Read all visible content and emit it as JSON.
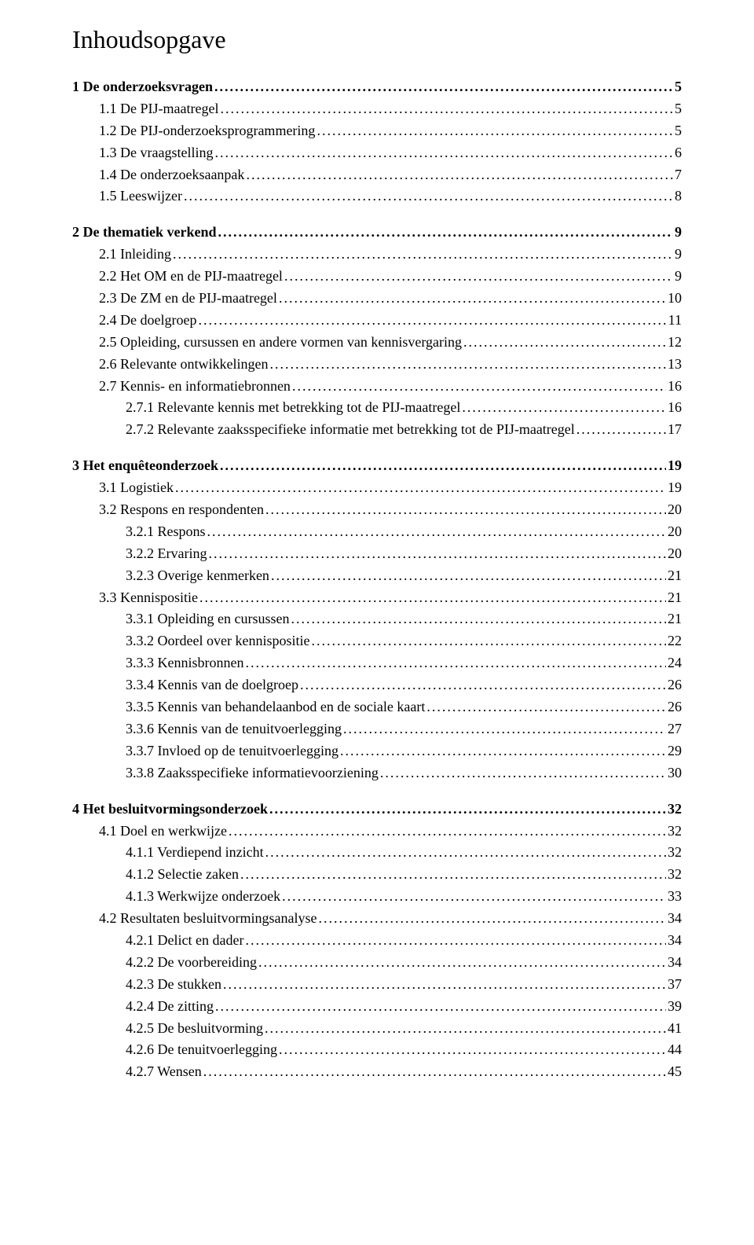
{
  "title": "Inhoudsopgave",
  "text_color": "#000000",
  "background_color": "#ffffff",
  "title_fontsize": 32,
  "body_fontsize": 18,
  "toc": [
    {
      "level": 0,
      "bold": true,
      "label": "1    De onderzoeksvragen",
      "page": "5"
    },
    {
      "level": 1,
      "bold": false,
      "label": "1.1    De PIJ-maatregel",
      "page": "5"
    },
    {
      "level": 1,
      "bold": false,
      "label": "1.2    De PIJ-onderzoeksprogrammering",
      "page": "5"
    },
    {
      "level": 1,
      "bold": false,
      "label": "1.3    De vraagstelling",
      "page": "6"
    },
    {
      "level": 1,
      "bold": false,
      "label": "1.4    De onderzoeksaanpak",
      "page": "7"
    },
    {
      "level": 1,
      "bold": false,
      "label": "1.5    Leeswijzer",
      "page": "8"
    },
    {
      "spacer": true
    },
    {
      "level": 0,
      "bold": true,
      "label": "2    De thematiek verkend",
      "page": "9"
    },
    {
      "level": 1,
      "bold": false,
      "label": "2.1    Inleiding",
      "page": "9"
    },
    {
      "level": 1,
      "bold": false,
      "label": "2.2    Het OM en de PIJ-maatregel",
      "page": "9"
    },
    {
      "level": 1,
      "bold": false,
      "label": "2.3    De ZM en de PIJ-maatregel",
      "page": "10"
    },
    {
      "level": 1,
      "bold": false,
      "label": "2.4    De doelgroep",
      "page": "11"
    },
    {
      "level": 1,
      "bold": false,
      "label": "2.5    Opleiding, cursussen en andere vormen van kennisvergaring",
      "page": "12"
    },
    {
      "level": 1,
      "bold": false,
      "label": "2.6    Relevante ontwikkelingen",
      "page": "13"
    },
    {
      "level": 1,
      "bold": false,
      "label": "2.7    Kennis- en informatiebronnen",
      "page": "16"
    },
    {
      "level": 2,
      "bold": false,
      "label": "2.7.1    Relevante kennis met betrekking tot de PIJ-maatregel",
      "page": "16"
    },
    {
      "level": 2,
      "bold": false,
      "label": "2.7.2    Relevante zaaksspecifieke informatie met betrekking tot de PIJ-maatregel",
      "page": "17"
    },
    {
      "spacer": true
    },
    {
      "level": 0,
      "bold": true,
      "label": "3    Het enquêteonderzoek",
      "page": "19"
    },
    {
      "level": 1,
      "bold": false,
      "label": "3.1    Logistiek",
      "page": "19"
    },
    {
      "level": 1,
      "bold": false,
      "label": "3.2    Respons en respondenten",
      "page": "20"
    },
    {
      "level": 2,
      "bold": false,
      "label": "3.2.1    Respons",
      "page": "20"
    },
    {
      "level": 2,
      "bold": false,
      "label": "3.2.2    Ervaring",
      "page": "20"
    },
    {
      "level": 2,
      "bold": false,
      "label": "3.2.3    Overige kenmerken",
      "page": "21"
    },
    {
      "level": 1,
      "bold": false,
      "label": "3.3    Kennispositie",
      "page": "21"
    },
    {
      "level": 2,
      "bold": false,
      "label": "3.3.1    Opleiding en cursussen",
      "page": "21"
    },
    {
      "level": 2,
      "bold": false,
      "label": "3.3.2    Oordeel over kennispositie",
      "page": "22"
    },
    {
      "level": 2,
      "bold": false,
      "label": "3.3.3    Kennisbronnen",
      "page": "24"
    },
    {
      "level": 2,
      "bold": false,
      "label": "3.3.4    Kennis van de doelgroep",
      "page": "26"
    },
    {
      "level": 2,
      "bold": false,
      "label": "3.3.5    Kennis van behandelaanbod en de sociale kaart",
      "page": "26"
    },
    {
      "level": 2,
      "bold": false,
      "label": "3.3.6    Kennis van de tenuitvoerlegging",
      "page": "27"
    },
    {
      "level": 2,
      "bold": false,
      "label": "3.3.7    Invloed op de tenuitvoerlegging",
      "page": "29"
    },
    {
      "level": 2,
      "bold": false,
      "label": "3.3.8    Zaaksspecifieke informatievoorziening",
      "page": "30"
    },
    {
      "spacer": true
    },
    {
      "level": 0,
      "bold": true,
      "label": "4    Het besluitvormingsonderzoek",
      "page": "32"
    },
    {
      "level": 1,
      "bold": false,
      "label": "4.1    Doel en werkwijze",
      "page": "32"
    },
    {
      "level": 2,
      "bold": false,
      "label": "4.1.1    Verdiepend inzicht",
      "page": "32"
    },
    {
      "level": 2,
      "bold": false,
      "label": "4.1.2    Selectie zaken",
      "page": "32"
    },
    {
      "level": 2,
      "bold": false,
      "label": "4.1.3    Werkwijze onderzoek",
      "page": "33"
    },
    {
      "level": 1,
      "bold": false,
      "label": "4.2    Resultaten besluitvormingsanalyse",
      "page": "34"
    },
    {
      "level": 2,
      "bold": false,
      "label": "4.2.1    Delict en dader",
      "page": "34"
    },
    {
      "level": 2,
      "bold": false,
      "label": "4.2.2    De voorbereiding",
      "page": "34"
    },
    {
      "level": 2,
      "bold": false,
      "label": "4.2.3    De stukken",
      "page": "37"
    },
    {
      "level": 2,
      "bold": false,
      "label": "4.2.4    De zitting",
      "page": "39"
    },
    {
      "level": 2,
      "bold": false,
      "label": "4.2.5    De besluitvorming",
      "page": "41"
    },
    {
      "level": 2,
      "bold": false,
      "label": "4.2.6    De tenuitvoerlegging",
      "page": "44"
    },
    {
      "level": 2,
      "bold": false,
      "label": "4.2.7    Wensen",
      "page": "45"
    }
  ]
}
